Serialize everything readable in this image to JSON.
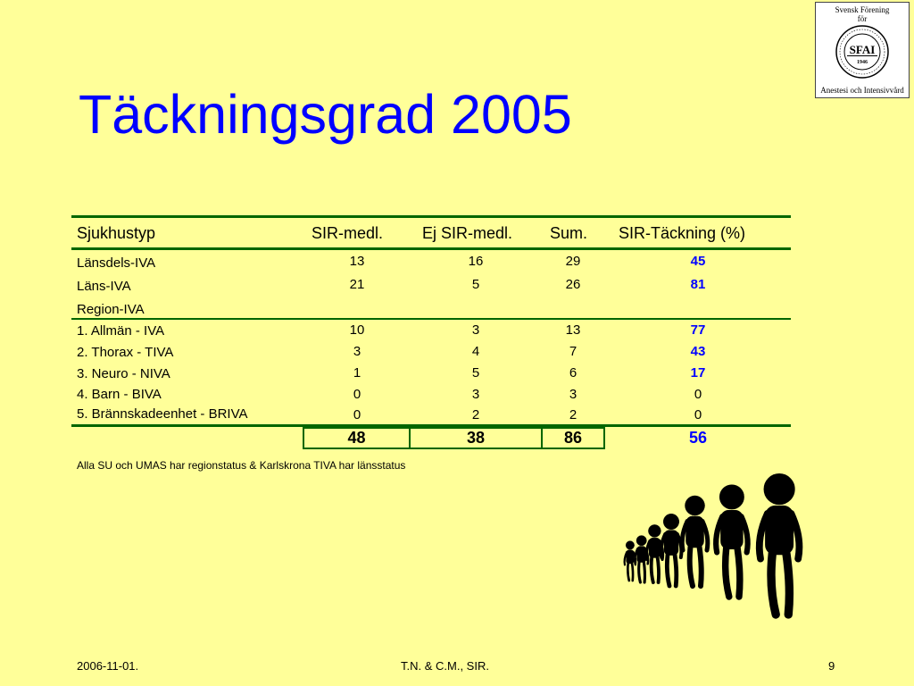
{
  "slide": {
    "title": "Täckningsgrad 2005",
    "logo": {
      "line1": "Svensk Förening",
      "line2": "för",
      "center": "SFAI",
      "year": "1946",
      "line3": "Anestesi och Intensivvård"
    },
    "table": {
      "headers": [
        "Sjukhustyp",
        "SIR-medl.",
        "Ej SIR-medl.",
        "Sum.",
        "SIR-Täckning (%)"
      ],
      "rows": [
        {
          "label": "Länsdels-IVA",
          "sir": "13",
          "ej": "16",
          "sum": "29",
          "pct": "45",
          "pct_bold": true
        },
        {
          "label": "Läns-IVA",
          "sir": "21",
          "ej": "5",
          "sum": "26",
          "pct": "81",
          "pct_bold": true
        },
        {
          "label": "Region-IVA",
          "sir": "",
          "ej": "",
          "sum": "",
          "pct": "",
          "pct_bold": false
        },
        {
          "label": "1. Allmän - IVA",
          "sir": "10",
          "ej": "3",
          "sum": "13",
          "pct": "77",
          "pct_bold": true
        },
        {
          "label": "2. Thorax - TIVA",
          "sir": "3",
          "ej": "4",
          "sum": "7",
          "pct": "43",
          "pct_bold": true
        },
        {
          "label": "3. Neuro - NIVA",
          "sir": "1",
          "ej": "5",
          "sum": "6",
          "pct": "17",
          "pct_bold": true
        },
        {
          "label": "4. Barn - BIVA",
          "sir": "0",
          "ej": "3",
          "sum": "3",
          "pct": "0",
          "pct_bold": false
        },
        {
          "label": "5. Brännskadeenhet - BRIVA",
          "sir": "0",
          "ej": "2",
          "sum": "2",
          "pct": "0",
          "pct_bold": false
        }
      ],
      "totals": {
        "sir": "48",
        "ej": "38",
        "sum": "86",
        "pct": "56"
      }
    },
    "note": "Alla SU och UMAS har regionstatus & Karlskrona TIVA har länsstatus",
    "footer": {
      "date": "2006-11-01.",
      "authors": "T.N. & C.M., SIR.",
      "page": "9"
    },
    "colors": {
      "background": "#FFFF99",
      "title": "#0000FF",
      "rule": "#006600",
      "percent": "#0000FF"
    }
  }
}
